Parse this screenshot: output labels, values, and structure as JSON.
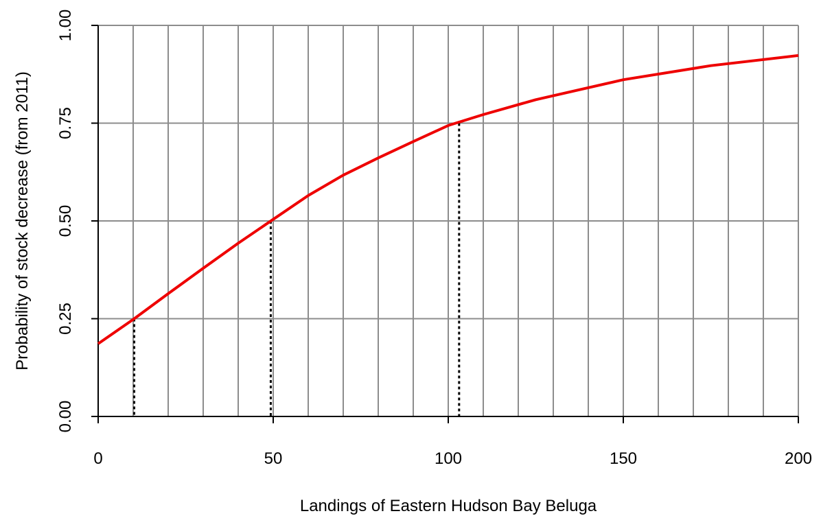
{
  "chart_data": {
    "type": "line",
    "title": "",
    "xlabel": "Landings of Eastern Hudson Bay Beluga",
    "ylabel": "Probability of stock decrease (from 2011)",
    "xlim": [
      0,
      200
    ],
    "ylim": [
      0,
      1
    ],
    "x_ticks": [
      0,
      50,
      100,
      150,
      200
    ],
    "y_ticks": [
      0.0,
      0.25,
      0.5,
      0.75,
      1.0
    ],
    "x_tick_labels": [
      "0",
      "50",
      "100",
      "150",
      "200"
    ],
    "y_tick_labels": [
      "0.00",
      "0.25",
      "0.50",
      "0.75",
      "1.00"
    ],
    "x_grid": [
      0,
      10,
      20,
      30,
      40,
      50,
      60,
      70,
      80,
      90,
      100,
      110,
      120,
      130,
      140,
      150,
      160,
      170,
      180,
      190,
      200
    ],
    "y_grid": [
      0.25,
      0.5,
      0.75,
      1.0
    ],
    "grid": true,
    "series": [
      {
        "color": "#ee0000",
        "x": [
          0,
          10,
          20,
          30,
          40,
          50,
          60,
          70,
          80,
          90,
          100,
          110,
          125,
          150,
          175,
          200
        ],
        "y": [
          0.186,
          0.248,
          0.314,
          0.379,
          0.443,
          0.504,
          0.565,
          0.617,
          0.661,
          0.703,
          0.744,
          0.772,
          0.81,
          0.861,
          0.897,
          0.923
        ]
      }
    ],
    "reference_lines": [
      {
        "x": 10.3,
        "y": 0.25
      },
      {
        "x": 49.3,
        "y": 0.5
      },
      {
        "x": 103.1,
        "y": 0.75
      }
    ]
  }
}
